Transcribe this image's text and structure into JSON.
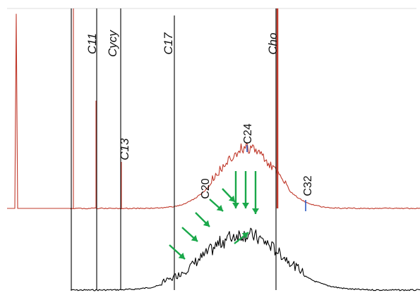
{
  "chart_data": {
    "type": "line",
    "title": "",
    "xlabel": "",
    "ylabel": "",
    "grid": false,
    "legend": "none",
    "peak_labels": [
      "C11",
      "Cycy",
      "C13",
      "C17",
      "Cho"
    ],
    "marker_labels": [
      "C20",
      "C24",
      "C32"
    ],
    "series": [
      {
        "color": "#c0392b",
        "trace": "upper"
      },
      {
        "color": "#000000",
        "trace": "lower"
      }
    ],
    "annotations": {
      "arrow_color": "#1aa84a",
      "arrow_count": 11,
      "tick_color": "#1f4fbf"
    }
  }
}
